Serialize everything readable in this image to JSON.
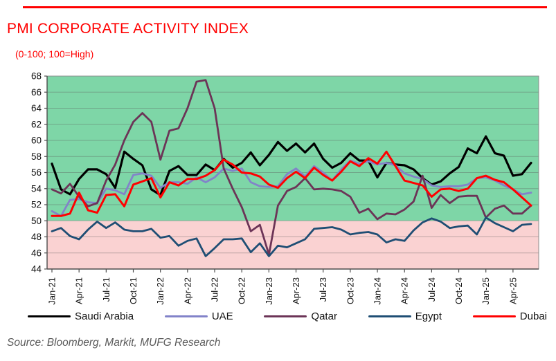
{
  "header": {
    "title": "PMI CORPORATE ACTIVITY INDEX",
    "subtitle": "(0-100; 100=High)",
    "accent_color": "#FF0000"
  },
  "footer": {
    "source": "Source: Bloomberg, Markit, MUFG Research"
  },
  "chart_data": {
    "type": "line",
    "title": "PMI CORPORATE ACTIVITY INDEX",
    "subtitle": "(0-100; 100=High)",
    "x_start": "Jan-21",
    "x_end": "Jun-25",
    "x_frequency": "monthly",
    "x_tick_labels": [
      "Jan-21",
      "Apr-21",
      "Jul-21",
      "Oct-21",
      "Jan-22",
      "Apr-22",
      "Jul-22",
      "Oct-22",
      "Jan-23",
      "Apr-23",
      "Jul-23",
      "Oct-23",
      "Jan-24",
      "Apr-24",
      "Jul-24",
      "Oct-24",
      "Jan-25",
      "Apr-25"
    ],
    "x_tick_every_n_months": 3,
    "ylim": [
      44,
      68
    ],
    "y_ticks": [
      44,
      46,
      48,
      50,
      52,
      54,
      56,
      58,
      60,
      62,
      64,
      66,
      68
    ],
    "threshold": 50,
    "above_threshold_color": "#7ED6A7",
    "below_threshold_color": "#FAD2D2",
    "gridline_color": "rgba(89,89,89,0.38)",
    "axis_color": "#4d4d4d",
    "grid": true,
    "legend_position": "bottom",
    "series": [
      {
        "name": "Saudi Arabia",
        "color": "#000000",
        "width": 3.2,
        "values": [
          57.1,
          53.9,
          53.3,
          55.2,
          56.4,
          56.4,
          55.8,
          54.1,
          58.6,
          57.7,
          56.9,
          53.9,
          53.2,
          56.2,
          56.8,
          55.7,
          55.7,
          57.0,
          56.3,
          57.7,
          56.6,
          57.2,
          58.5,
          56.9,
          58.2,
          59.8,
          58.7,
          59.6,
          58.5,
          59.6,
          57.7,
          56.6,
          57.2,
          58.4,
          57.5,
          57.5,
          55.4,
          57.2,
          57.0,
          56.9,
          56.4,
          55.3,
          54.5,
          54.9,
          55.9,
          56.7,
          59.0,
          58.4,
          60.5,
          58.4,
          58.1,
          55.6,
          55.8,
          57.2
        ]
      },
      {
        "name": "UAE",
        "color": "#8283C9",
        "width": 2.8,
        "values": [
          51.2,
          50.6,
          52.6,
          52.7,
          52.3,
          52.2,
          54.0,
          53.8,
          53.3,
          55.7,
          55.9,
          55.6,
          54.1,
          54.8,
          54.8,
          54.6,
          55.4,
          54.8,
          55.4,
          56.5,
          56.2,
          56.5,
          54.8,
          54.3,
          54.2,
          54.3,
          55.8,
          56.5,
          55.5,
          56.8,
          56.0,
          55.0,
          56.4,
          57.5,
          57.1,
          57.4,
          57.0,
          57.2,
          56.9,
          55.9,
          55.5,
          55.2,
          54.4,
          54.2,
          54.3,
          54.3,
          54.5,
          55.3,
          55.4,
          55.0,
          54.4,
          53.9,
          53.3,
          53.5
        ]
      },
      {
        "name": "Qatar",
        "color": "#6C3457",
        "width": 2.8,
        "values": [
          53.9,
          53.4,
          54.6,
          53.0,
          51.8,
          52.2,
          55.0,
          57.0,
          60.0,
          62.3,
          63.4,
          62.3,
          57.6,
          61.2,
          61.5,
          64.0,
          67.3,
          67.5,
          64.0,
          56.5,
          54.0,
          51.7,
          48.7,
          49.5,
          45.8,
          51.9,
          53.7,
          54.2,
          55.3,
          53.9,
          54.0,
          53.9,
          53.7,
          53.0,
          51.0,
          51.5,
          50.2,
          50.9,
          50.8,
          51.4,
          52.4,
          55.6,
          51.6,
          53.2,
          52.2,
          53.0,
          53.1,
          53.1,
          50.4,
          51.5,
          51.9,
          50.9,
          50.9,
          51.9
        ]
      },
      {
        "name": "Egypt",
        "color": "#1F4E74",
        "width": 2.8,
        "values": [
          48.7,
          49.1,
          48.1,
          47.7,
          48.9,
          49.9,
          49.1,
          49.8,
          48.9,
          48.7,
          48.7,
          49.0,
          47.9,
          48.1,
          46.9,
          47.5,
          47.8,
          45.6,
          46.6,
          47.7,
          47.7,
          47.8,
          46.1,
          47.2,
          45.6,
          46.9,
          46.7,
          47.2,
          47.7,
          49.0,
          49.1,
          49.2,
          48.9,
          48.3,
          48.5,
          48.6,
          48.3,
          47.3,
          47.7,
          47.5,
          48.8,
          49.8,
          50.3,
          49.9,
          49.1,
          49.3,
          49.4,
          48.3,
          50.4,
          49.7,
          49.2,
          48.7,
          49.5,
          49.6
        ]
      },
      {
        "name": "Dubai",
        "color": "#FF0000",
        "width": 3.0,
        "values": [
          50.6,
          50.6,
          50.9,
          53.5,
          51.3,
          51.0,
          53.2,
          53.3,
          51.8,
          54.5,
          54.9,
          55.3,
          52.9,
          54.8,
          54.4,
          55.2,
          55.2,
          55.6,
          56.3,
          57.6,
          57.0,
          56.0,
          55.9,
          55.5,
          54.5,
          54.1,
          55.3,
          56.1,
          55.3,
          56.6,
          55.7,
          55.0,
          56.1,
          57.4,
          56.8,
          57.8,
          57.1,
          58.6,
          56.8,
          55.0,
          54.7,
          54.4,
          53.0,
          53.9,
          54.0,
          53.7,
          54.0,
          55.3,
          55.6,
          55.1,
          54.8,
          53.9,
          52.9,
          51.9
        ]
      }
    ]
  }
}
